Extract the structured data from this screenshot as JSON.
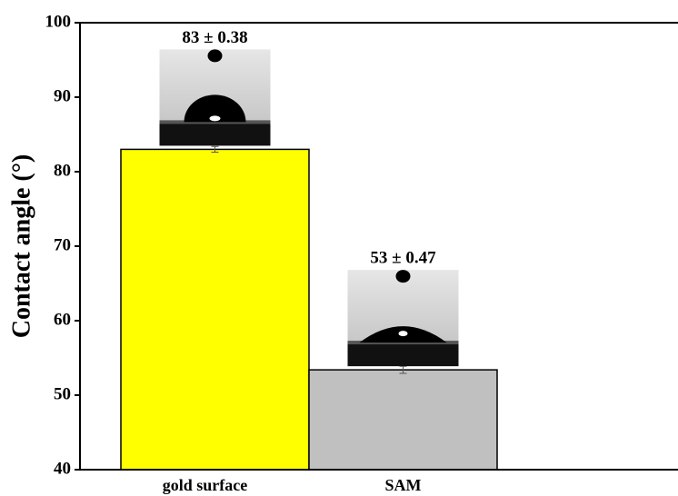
{
  "chart_data": {
    "type": "bar",
    "y_label": "Contact angle (°)",
    "categories": [
      "gold surface",
      "SAM"
    ],
    "values": [
      83,
      53.4
    ],
    "errors": [
      0.38,
      0.47
    ],
    "value_labels": [
      "83 ± 0.38",
      "53 ± 0.47"
    ],
    "colors": [
      "#ffff00",
      "#c0c0c0"
    ],
    "ylim": [
      40,
      100
    ],
    "yticks": [
      40,
      50,
      60,
      70,
      80,
      90,
      100
    ]
  }
}
